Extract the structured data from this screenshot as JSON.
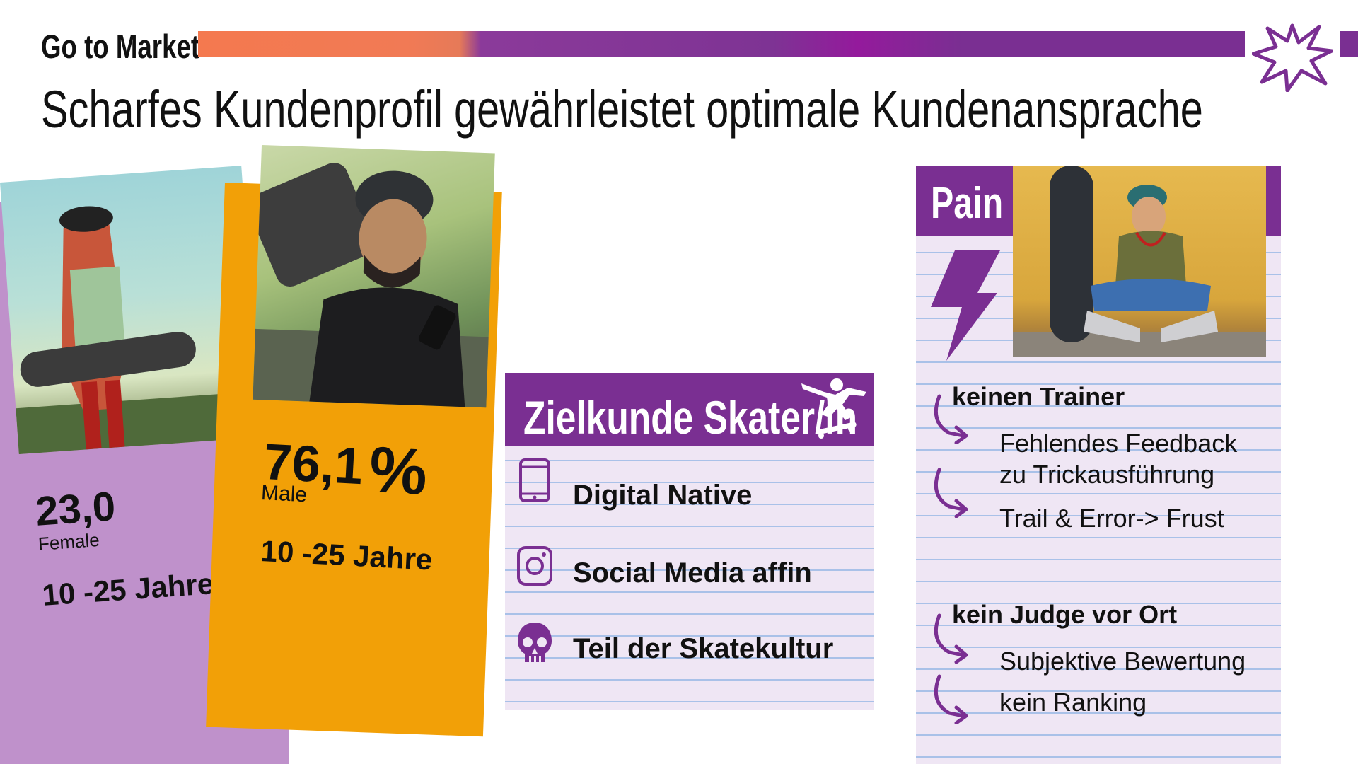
{
  "header": {
    "section": "Go to Market",
    "title": "Scharfes Kundenprofil gewährleistet optimale Kundenansprache"
  },
  "female_card": {
    "value": "23,0",
    "gender": "Female",
    "age": "10 -25 Jahre",
    "color": "#bf91cb"
  },
  "male_card": {
    "value": "76,1",
    "percent_sign": "%",
    "gender": "Male",
    "age": "10 -25 Jahre",
    "color": "#f2a007"
  },
  "target": {
    "title": "Zielkunde Skater/in",
    "traits": [
      {
        "icon": "smartphone-icon",
        "label": "Digital Native"
      },
      {
        "icon": "instagram-icon",
        "label": "Social Media affin"
      },
      {
        "icon": "skull-icon",
        "label": "Teil der Skatekultur"
      }
    ]
  },
  "pain": {
    "title": "Pain",
    "groups": [
      {
        "heading": "keinen Trainer",
        "items": [
          "Fehlendes Feedback",
          "zu Trickausführung",
          "Trail & Error-> Frust"
        ]
      },
      {
        "heading": "kein Judge vor Ort",
        "items": [
          "Subjektive Bewertung",
          "kein Ranking"
        ]
      }
    ]
  },
  "colors": {
    "accent": "#7a2f92",
    "orange": "#f4794f",
    "paper": "#efe6f4",
    "line": "#a9c1e8"
  }
}
